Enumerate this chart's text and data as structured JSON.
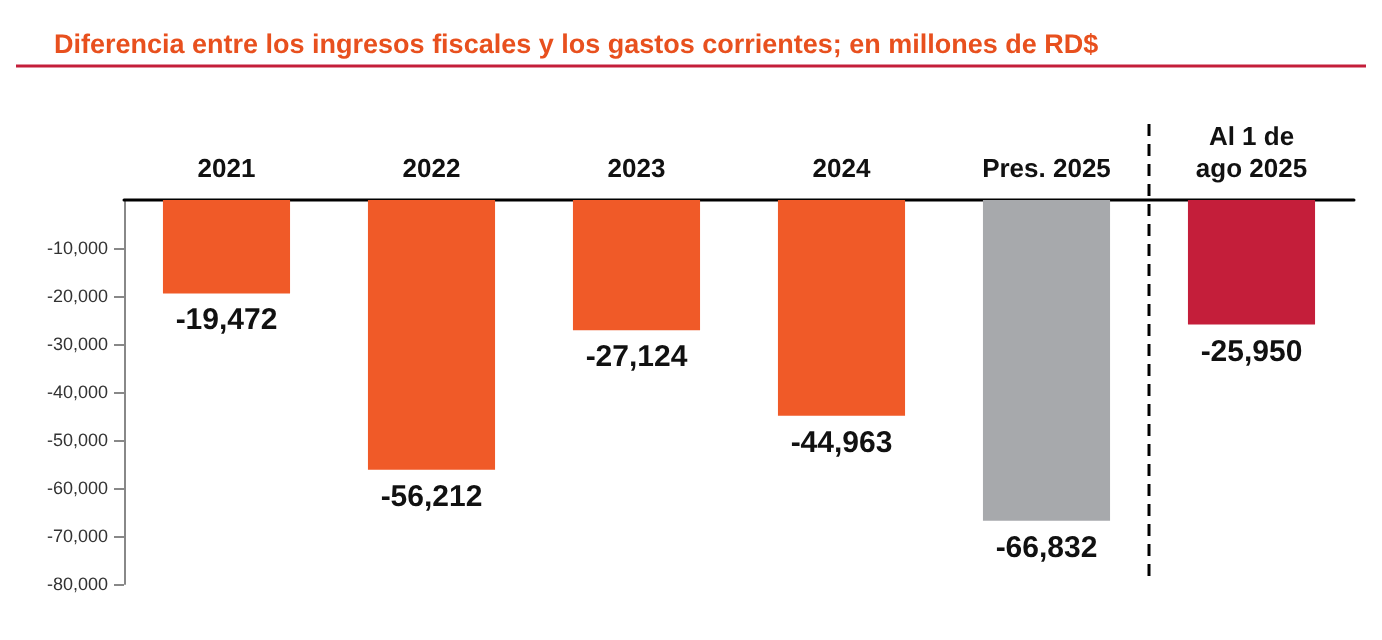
{
  "chart_data": {
    "type": "bar",
    "title": "Diferencia entre los ingresos fiscales y los gastos corrientes; en millones de RD$",
    "categories": [
      "2021",
      "2022",
      "2023",
      "2024",
      "Pres. 2025",
      "Al 1 de\nago 2025"
    ],
    "values": [
      -19472,
      -56212,
      -27124,
      -44963,
      -66832,
      -25950
    ],
    "value_labels": [
      "-19,472",
      "-56,212",
      "-27,124",
      "-44,963",
      "-66,832",
      "-25,950"
    ],
    "colors": [
      "#f05a28",
      "#f05a28",
      "#f05a28",
      "#f05a28",
      "#a7a9ac",
      "#c41e3a"
    ],
    "ylim": [
      -80000,
      0
    ],
    "yticks": [
      {
        "value": -10000,
        "label": "-10,000"
      },
      {
        "value": -20000,
        "label": "-20,000"
      },
      {
        "value": -30000,
        "label": "-30,000"
      },
      {
        "value": -40000,
        "label": "-40,000"
      },
      {
        "value": -50000,
        "label": "-50,000"
      },
      {
        "value": -60000,
        "label": "-60,000"
      },
      {
        "value": -70000,
        "label": "-70,000"
      },
      {
        "value": -80000,
        "label": "-80,000"
      }
    ]
  }
}
